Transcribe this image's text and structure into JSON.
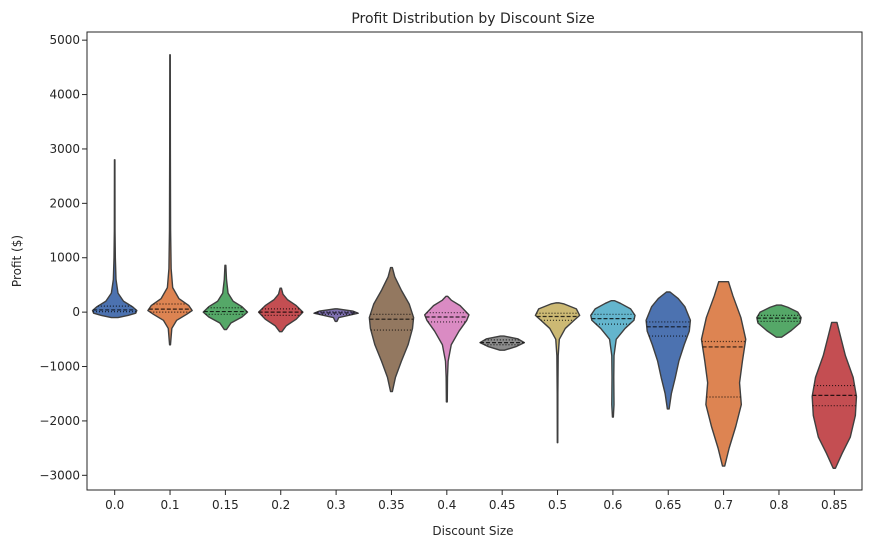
{
  "chart_data": {
    "type": "violin",
    "title": "Profit Distribution by Discount Size",
    "xlabel": "Discount Size",
    "ylabel": "Profit ($)",
    "ylim": [
      -3270,
      5150
    ],
    "yticks": [
      -3000,
      -2000,
      -1000,
      0,
      1000,
      2000,
      3000,
      4000,
      5000
    ],
    "yticklabels": [
      "−3000",
      "−2000",
      "−1000",
      "0",
      "1000",
      "2000",
      "3000",
      "4000",
      "5000"
    ],
    "grid": false,
    "inner": "quartile",
    "categories": [
      "0.0",
      "0.1",
      "0.15",
      "0.2",
      "0.3",
      "0.35",
      "0.4",
      "0.45",
      "0.5",
      "0.6",
      "0.65",
      "0.7",
      "0.8",
      "0.85"
    ],
    "series": [
      {
        "category": "0.0",
        "color": "#4c72b0",
        "min": -100,
        "max": 2800,
        "q1": 8,
        "median": 40,
        "q3": 110,
        "profile": [
          [
            -100,
            0.15
          ],
          [
            -60,
            0.6
          ],
          [
            -20,
            0.95
          ],
          [
            30,
            1.0
          ],
          [
            100,
            0.8
          ],
          [
            200,
            0.4
          ],
          [
            350,
            0.15
          ],
          [
            600,
            0.06
          ],
          [
            1000,
            0.03
          ],
          [
            1500,
            0.015
          ],
          [
            2800,
            0.01
          ]
        ]
      },
      {
        "category": "0.1",
        "color": "#dd8452",
        "min": -600,
        "max": 4730,
        "q1": 0,
        "median": 55,
        "q3": 150,
        "profile": [
          [
            -600,
            0.02
          ],
          [
            -300,
            0.08
          ],
          [
            -150,
            0.3
          ],
          [
            -40,
            0.75
          ],
          [
            30,
            1.0
          ],
          [
            120,
            0.85
          ],
          [
            250,
            0.4
          ],
          [
            450,
            0.12
          ],
          [
            800,
            0.05
          ],
          [
            1500,
            0.025
          ],
          [
            3000,
            0.015
          ],
          [
            4730,
            0.01
          ]
        ]
      },
      {
        "category": "0.15",
        "color": "#55a868",
        "min": -320,
        "max": 860,
        "q1": -40,
        "median": 10,
        "q3": 80,
        "profile": [
          [
            -320,
            0.05
          ],
          [
            -200,
            0.25
          ],
          [
            -90,
            0.75
          ],
          [
            0,
            1.0
          ],
          [
            100,
            0.75
          ],
          [
            200,
            0.35
          ],
          [
            350,
            0.12
          ],
          [
            600,
            0.05
          ],
          [
            860,
            0.02
          ]
        ]
      },
      {
        "category": "0.2",
        "color": "#c44e52",
        "min": -360,
        "max": 440,
        "q1": -60,
        "median": 0,
        "q3": 60,
        "profile": [
          [
            -360,
            0.05
          ],
          [
            -250,
            0.25
          ],
          [
            -130,
            0.7
          ],
          [
            0,
            1.0
          ],
          [
            120,
            0.7
          ],
          [
            230,
            0.3
          ],
          [
            330,
            0.1
          ],
          [
            440,
            0.03
          ]
        ]
      },
      {
        "category": "0.3",
        "color": "#8172b3",
        "min": -170,
        "max": 60,
        "q1": -40,
        "median": -15,
        "q3": 5,
        "profile": [
          [
            -170,
            0.04
          ],
          [
            -100,
            0.12
          ],
          [
            -60,
            0.55
          ],
          [
            -20,
            1.0
          ],
          [
            20,
            0.75
          ],
          [
            60,
            0.05
          ]
        ]
      },
      {
        "category": "0.35",
        "color": "#937860",
        "min": -1460,
        "max": 820,
        "q1": -330,
        "median": -130,
        "q3": -40,
        "profile": [
          [
            -1460,
            0.04
          ],
          [
            -1200,
            0.18
          ],
          [
            -900,
            0.45
          ],
          [
            -600,
            0.75
          ],
          [
            -300,
            0.95
          ],
          [
            -100,
            1.0
          ],
          [
            150,
            0.8
          ],
          [
            400,
            0.45
          ],
          [
            650,
            0.15
          ],
          [
            820,
            0.04
          ]
        ]
      },
      {
        "category": "0.4",
        "color": "#da8bc3",
        "min": -1650,
        "max": 290,
        "q1": -180,
        "median": -90,
        "q3": -10,
        "profile": [
          [
            -1650,
            0.02
          ],
          [
            -1200,
            0.03
          ],
          [
            -900,
            0.06
          ],
          [
            -600,
            0.2
          ],
          [
            -350,
            0.55
          ],
          [
            -150,
            0.9
          ],
          [
            -50,
            1.0
          ],
          [
            120,
            0.6
          ],
          [
            220,
            0.2
          ],
          [
            290,
            0.04
          ]
        ]
      },
      {
        "category": "0.45",
        "color": "#8c8c8c",
        "min": -700,
        "max": -440,
        "q1": -600,
        "median": -560,
        "q3": -510,
        "profile": [
          [
            -700,
            0.1
          ],
          [
            -630,
            0.65
          ],
          [
            -560,
            1.0
          ],
          [
            -490,
            0.7
          ],
          [
            -440,
            0.08
          ]
        ]
      },
      {
        "category": "0.5",
        "color": "#ccb974",
        "min": -2400,
        "max": 170,
        "q1": -150,
        "median": -80,
        "q3": -20,
        "profile": [
          [
            -2400,
            0.01
          ],
          [
            -1500,
            0.015
          ],
          [
            -800,
            0.03
          ],
          [
            -500,
            0.08
          ],
          [
            -300,
            0.35
          ],
          [
            -150,
            0.75
          ],
          [
            -60,
            1.0
          ],
          [
            60,
            0.85
          ],
          [
            150,
            0.3
          ],
          [
            170,
            0.08
          ]
        ]
      },
      {
        "category": "0.6",
        "color": "#64b5cd",
        "min": -1930,
        "max": 210,
        "q1": -220,
        "median": -120,
        "q3": -40,
        "profile": [
          [
            -1930,
            0.02
          ],
          [
            -1700,
            0.05
          ],
          [
            -1200,
            0.04
          ],
          [
            -800,
            0.05
          ],
          [
            -500,
            0.15
          ],
          [
            -300,
            0.55
          ],
          [
            -150,
            0.95
          ],
          [
            -60,
            1.0
          ],
          [
            60,
            0.8
          ],
          [
            160,
            0.35
          ],
          [
            210,
            0.08
          ]
        ]
      },
      {
        "category": "0.65",
        "color": "#4c72b0",
        "min": -1780,
        "max": 370,
        "q1": -440,
        "median": -270,
        "q3": -180,
        "profile": [
          [
            -1780,
            0.04
          ],
          [
            -1500,
            0.14
          ],
          [
            -1200,
            0.32
          ],
          [
            -900,
            0.48
          ],
          [
            -600,
            0.72
          ],
          [
            -350,
            0.95
          ],
          [
            -150,
            1.0
          ],
          [
            100,
            0.75
          ],
          [
            250,
            0.45
          ],
          [
            370,
            0.08
          ]
        ]
      },
      {
        "category": "0.7",
        "color": "#dd8452",
        "min": -2830,
        "max": 560,
        "q1": -1560,
        "median": -640,
        "q3": -540,
        "profile": [
          [
            -2830,
            0.05
          ],
          [
            -2500,
            0.25
          ],
          [
            -2100,
            0.55
          ],
          [
            -1700,
            0.8
          ],
          [
            -1300,
            0.72
          ],
          [
            -900,
            0.85
          ],
          [
            -500,
            1.0
          ],
          [
            -100,
            0.78
          ],
          [
            300,
            0.42
          ],
          [
            560,
            0.22
          ]
        ]
      },
      {
        "category": "0.8",
        "color": "#55a868",
        "min": -460,
        "max": 130,
        "q1": -170,
        "median": -110,
        "q3": -60,
        "profile": [
          [
            -460,
            0.12
          ],
          [
            -340,
            0.55
          ],
          [
            -200,
            0.95
          ],
          [
            -100,
            1.0
          ],
          [
            0,
            0.85
          ],
          [
            90,
            0.4
          ],
          [
            130,
            0.1
          ]
        ]
      },
      {
        "category": "0.85",
        "color": "#c44e52",
        "min": -2870,
        "max": -190,
        "q1": -1720,
        "median": -1530,
        "q3": -1350,
        "profile": [
          [
            -2870,
            0.05
          ],
          [
            -2600,
            0.35
          ],
          [
            -2300,
            0.72
          ],
          [
            -1900,
            0.95
          ],
          [
            -1550,
            1.0
          ],
          [
            -1200,
            0.85
          ],
          [
            -800,
            0.5
          ],
          [
            -400,
            0.25
          ],
          [
            -190,
            0.12
          ]
        ]
      }
    ]
  }
}
